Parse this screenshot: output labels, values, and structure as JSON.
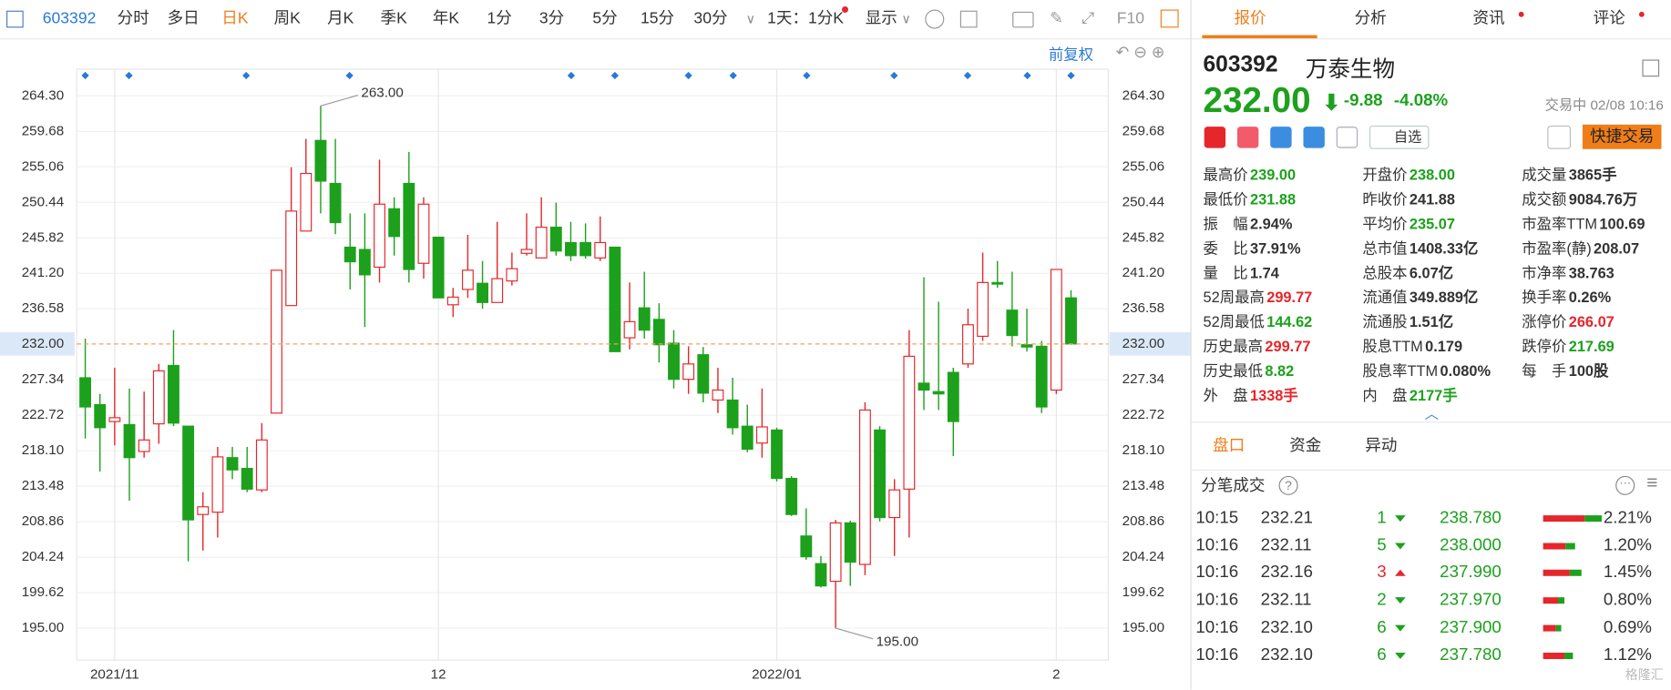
{
  "toolbar": {
    "code": "603392",
    "tabs": [
      "分时",
      "多日",
      "日K",
      "周K",
      "月K",
      "季K",
      "年K",
      "1分",
      "3分",
      "5分",
      "15分",
      "30分"
    ],
    "period": "1天：1分K",
    "display": "显示",
    "f10": "F10",
    "adjust": "前复权"
  },
  "chart_data": {
    "type": "candlestick",
    "up_color": "#e5262b",
    "down_color": "#1da11d",
    "grid": true,
    "categories": [
      null,
      null,
      "2021/11",
      null,
      null,
      null,
      null,
      null,
      null,
      null,
      null,
      null,
      null,
      null,
      null,
      null,
      null,
      null,
      null,
      null,
      null,
      null,
      null,
      null,
      "12",
      null,
      null,
      null,
      null,
      null,
      null,
      null,
      null,
      null,
      null,
      null,
      null,
      null,
      null,
      null,
      null,
      null,
      null,
      null,
      null,
      null,
      null,
      "2022/01",
      null,
      null,
      null,
      null,
      null,
      null,
      null,
      null,
      null,
      null,
      null,
      null,
      null,
      null,
      null,
      null,
      null,
      null,
      "2",
      null
    ],
    "open": [
      227.6,
      224.1,
      221.9,
      221.5,
      218.0,
      221.6,
      229.2,
      221.3,
      209.8,
      210.1,
      217.2,
      215.8,
      213.0,
      223.0,
      237.0,
      246.7,
      258.5,
      252.9,
      244.6,
      244.3,
      242.0,
      249.6,
      252.9,
      242.5,
      245.9,
      237.1,
      239.1,
      239.9,
      237.4,
      240.2,
      243.8,
      243.2,
      247.2,
      245.2,
      245.2,
      243.2,
      244.6,
      232.8,
      236.7,
      235.2,
      232.1,
      227.4,
      230.6,
      224.7,
      224.7,
      221.3,
      219.1,
      220.8,
      214.5,
      207.0,
      203.4,
      201.1,
      208.7,
      203.3,
      220.8,
      209.4,
      213.1,
      226.9,
      225.8,
      228.3,
      229.4,
      233.0,
      240.0,
      236.4,
      231.9,
      231.7,
      226.0,
      238.0
    ],
    "high": [
      232.7,
      225.5,
      228.9,
      226.2,
      225.8,
      229.4,
      233.8,
      221.3,
      212.7,
      218.6,
      218.6,
      218.6,
      221.7,
      241.6,
      255.0,
      258.7,
      263.0,
      258.7,
      249.0,
      249.0,
      256.0,
      251.1,
      257.0,
      251.1,
      245.9,
      239.3,
      246.2,
      242.8,
      247.9,
      243.9,
      249.0,
      251.1,
      250.4,
      247.9,
      247.7,
      248.6,
      244.6,
      240.0,
      241.4,
      237.3,
      233.8,
      231.7,
      231.6,
      228.9,
      227.6,
      224.1,
      226.2,
      221.1,
      214.8,
      210.6,
      204.4,
      209.1,
      209.0,
      224.4,
      221.3,
      214.4,
      233.8,
      240.7,
      237.5,
      228.9,
      236.6,
      243.9,
      242.8,
      241.4,
      236.6,
      232.4,
      241.7,
      239.0
    ],
    "low": [
      219.7,
      215.4,
      218.8,
      211.6,
      217.2,
      219.0,
      221.3,
      203.7,
      205.1,
      206.8,
      214.4,
      212.7,
      212.7,
      223.0,
      237.0,
      246.7,
      249.0,
      246.3,
      239.1,
      234.2,
      240.0,
      243.5,
      240.0,
      240.5,
      238.0,
      235.5,
      238.0,
      236.6,
      237.4,
      239.6,
      243.5,
      243.2,
      243.5,
      242.8,
      243.1,
      242.8,
      231.0,
      231.3,
      232.7,
      229.6,
      226.2,
      225.5,
      224.4,
      223.0,
      220.2,
      217.9,
      217.2,
      214.1,
      209.6,
      203.9,
      200.3,
      195.0,
      200.5,
      201.9,
      208.9,
      204.4,
      206.8,
      223.4,
      223.4,
      217.4,
      228.9,
      232.4,
      239.3,
      231.7,
      231.0,
      223.0,
      225.5,
      231.88
    ],
    "close": [
      223.8,
      221.1,
      222.4,
      217.2,
      219.5,
      228.5,
      221.7,
      209.1,
      210.8,
      217.3,
      215.6,
      213.1,
      219.5,
      241.6,
      249.3,
      254.2,
      253.2,
      247.8,
      242.7,
      241.0,
      250.2,
      246.0,
      241.7,
      250.2,
      238.0,
      238.1,
      241.6,
      237.4,
      240.5,
      241.8,
      244.3,
      247.2,
      244.1,
      243.5,
      243.5,
      245.2,
      231.0,
      234.9,
      233.8,
      231.9,
      227.4,
      229.4,
      225.6,
      226.0,
      221.1,
      218.3,
      221.2,
      214.5,
      209.8,
      204.3,
      200.5,
      208.7,
      203.6,
      223.4,
      209.4,
      213.0,
      230.4,
      226.0,
      225.5,
      221.9,
      234.5,
      240.0,
      239.8,
      233.1,
      231.6,
      223.8,
      241.7,
      232.0
    ],
    "ylim": [
      190.84,
      267.77
    ],
    "yticks": [
      {
        "value": 264.3,
        "label": "264.30"
      },
      259.68,
      255.06,
      250.44,
      245.82,
      {
        "value": 241.2,
        "label": "241.20"
      },
      236.58,
      227.34,
      222.72,
      {
        "value": 218.1,
        "label": "218.10"
      },
      213.48,
      208.86,
      204.24,
      199.62,
      {
        "value": 195,
        "label": "195.00"
      }
    ],
    "last_price": {
      "value": 232,
      "label": "232.00"
    },
    "high_label": {
      "value": 263,
      "label": "263.00"
    },
    "low_label": {
      "value": 195,
      "label": "195.00"
    }
  },
  "panel": {
    "tabs": [
      "报价",
      "分析",
      "资讯",
      "评论"
    ],
    "code": "603392",
    "name": "万泰生物",
    "price": "232.00",
    "change": "-9.88",
    "change_pct": "-4.08%",
    "status": "交易中 02/08 10:16",
    "watch": "自选",
    "trade": "快捷交易",
    "sub_tabs": [
      "盘口",
      "资金",
      "异动"
    ],
    "ticks_title": "分笔成交",
    "watermark": "格隆汇"
  },
  "quote_table": {
    "rows": [
      [
        {
          "label": "最高价",
          "value": "239.00",
          "color": "#1da11d"
        },
        {
          "label": "开盘价",
          "value": "238.00",
          "color": "#1da11d"
        },
        {
          "label": "成交量",
          "value": "3865手"
        }
      ],
      [
        {
          "label": "最低价",
          "value": "231.88",
          "color": "#1da11d"
        },
        {
          "label": "昨收价",
          "value": "241.88"
        },
        {
          "label": "成交额",
          "value": "9084.76万"
        }
      ],
      [
        {
          "label": "振　幅",
          "value": "2.94%"
        },
        {
          "label": "平均价",
          "value": "235.07",
          "color": "#1da11d"
        },
        {
          "label": "市盈率TTM",
          "value": "100.69"
        }
      ],
      [
        {
          "label": "委　比",
          "value": "37.91%"
        },
        {
          "label": "总市值",
          "value": "1408.33亿"
        },
        {
          "label": "市盈率(静)",
          "value": "208.07"
        }
      ],
      [
        {
          "label": "量　比",
          "value": "1.74"
        },
        {
          "label": "总股本",
          "value": "6.07亿"
        },
        {
          "label": "市净率",
          "value": "38.763"
        }
      ],
      [
        {
          "label": "52周最高",
          "value": "299.77",
          "color": "#e5262b"
        },
        {
          "label": "流通值",
          "value": "349.889亿"
        },
        {
          "label": "换手率",
          "value": "0.26%"
        }
      ],
      [
        {
          "label": "52周最低",
          "value": "144.62",
          "color": "#1da11d"
        },
        {
          "label": "流通股",
          "value": "1.51亿"
        },
        {
          "label": "涨停价",
          "value": "266.07",
          "color": "#e5262b"
        }
      ],
      [
        {
          "label": "历史最高",
          "value": "299.77",
          "color": "#e5262b"
        },
        {
          "label": "股息TTM",
          "value": "0.179"
        },
        {
          "label": "跌停价",
          "value": "217.69",
          "color": "#1da11d"
        }
      ],
      [
        {
          "label": "历史最低",
          "value": "8.82",
          "color": "#1da11d"
        },
        {
          "label": "股息率TTM",
          "value": "0.080%"
        },
        {
          "label": "每　手",
          "value": "100股"
        }
      ],
      [
        {
          "label": "外　盘",
          "value": "1338手",
          "color": "#e5262b"
        },
        {
          "label": "内　盘",
          "value": "2177手",
          "color": "#1da11d"
        }
      ]
    ]
  },
  "trades": {
    "rows": [
      {
        "time": "10:15",
        "price": "232.21",
        "volume": "1",
        "direction": "down",
        "level_price": "238.780",
        "pct": "2.21%"
      },
      {
        "time": "10:16",
        "price": "232.11",
        "volume": "5",
        "direction": "down",
        "level_price": "238.000",
        "pct": "1.20%"
      },
      {
        "time": "10:16",
        "price": "232.16",
        "volume": "3",
        "direction": "up",
        "level_price": "237.990",
        "pct": "1.45%"
      },
      {
        "time": "10:16",
        "price": "232.11",
        "volume": "2",
        "direction": "down",
        "level_price": "237.970",
        "pct": "0.80%"
      },
      {
        "time": "10:16",
        "price": "232.10",
        "volume": "6",
        "direction": "down",
        "level_price": "237.900",
        "pct": "0.69%"
      },
      {
        "time": "10:16",
        "price": "232.10",
        "volume": "6",
        "direction": "down",
        "level_price": "237.780",
        "pct": "1.12%"
      }
    ]
  }
}
